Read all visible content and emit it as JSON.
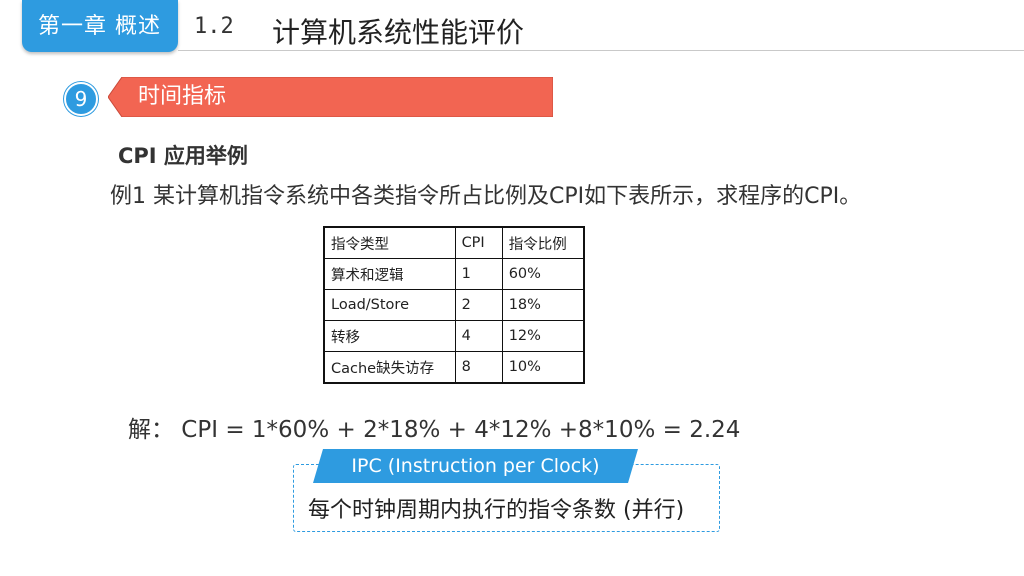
{
  "header": {
    "chapter": "第一章 概述",
    "section_num": "1.2",
    "section_title": "计算机系统性能评价"
  },
  "subheader": {
    "number": "9",
    "banner_label": "时间指标"
  },
  "content": {
    "heading": "CPI 应用举例",
    "example": "例1 某计算机指令系统中各类指令所占比例及CPI如下表所示，求程序的CPI。",
    "table": {
      "headers": [
        "指令类型",
        "CPI",
        "指令比例"
      ],
      "rows": [
        [
          "算术和逻辑",
          "1",
          "60%"
        ],
        [
          "Load/Store",
          "2",
          "18%"
        ],
        [
          "转移",
          "4",
          "12%"
        ],
        [
          "Cache缺失访存",
          "8",
          "10%"
        ]
      ]
    },
    "solution": "解：  CPI = 1*60% + 2*18% + 4*12% +8*10% = 2.24",
    "ipc_title": "IPC  (Instruction per Clock)",
    "ipc_desc": "每个时钟周期内执行的指令条数 (并行)"
  },
  "colors": {
    "accent_blue": "#2e9be0",
    "banner_red": "#f26552"
  }
}
